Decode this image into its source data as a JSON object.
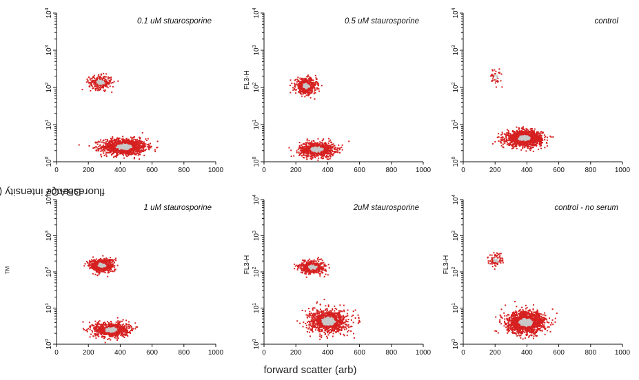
{
  "figure": {
    "ylabel_main": "DRAQ7",
    "ylabel_sup": "TM",
    "ylabel_rest": " fluorescence intensity (>695 nm LP)",
    "xlabel": "forward scatter (arb)"
  },
  "colors": {
    "dot": "#d62020",
    "core": "#c8c8c8",
    "axis": "#111111"
  },
  "chart_data": [
    {
      "type": "scatter",
      "title": "0.1 uM stuarosporine",
      "x_ticks": [
        "0",
        "200",
        "400",
        "600",
        "800",
        "1000"
      ],
      "y_ticks": [
        "10^0",
        "10^1",
        "10^2",
        "10^3",
        "10^4"
      ],
      "xlim": [
        0,
        1000
      ],
      "ylim_log10": [
        0,
        4
      ],
      "ylabel_text": "",
      "populations": [
        {
          "name": "live",
          "x_center": 420,
          "y_center_log": 0.42,
          "x_spread": 140,
          "y_spread_log": 0.22,
          "weight": 0.8
        },
        {
          "name": "dead",
          "x_center": 270,
          "y_center_log": 2.15,
          "x_spread": 70,
          "y_spread_log": 0.18,
          "weight": 0.2
        }
      ]
    },
    {
      "type": "scatter",
      "title": "0.5 uM staurosporine",
      "x_ticks": [
        "0",
        "200",
        "400",
        "600",
        "800",
        "1000"
      ],
      "y_ticks": [
        "10^0",
        "10^1",
        "10^2",
        "10^3",
        "10^4"
      ],
      "xlim": [
        0,
        1000
      ],
      "ylim_log10": [
        0,
        4
      ],
      "ylabel_text": "FL3-H",
      "populations": [
        {
          "name": "live",
          "x_center": 330,
          "y_center_log": 0.35,
          "x_spread": 110,
          "y_spread_log": 0.2,
          "weight": 0.6
        },
        {
          "name": "dead",
          "x_center": 260,
          "y_center_log": 2.05,
          "x_spread": 65,
          "y_spread_log": 0.2,
          "weight": 0.4
        }
      ]
    },
    {
      "type": "scatter",
      "title": "control",
      "x_ticks": [
        "0",
        "200",
        "400",
        "600",
        "800",
        "1000"
      ],
      "y_ticks": [
        "10^0",
        "10^1",
        "10^2",
        "10^3",
        "10^4"
      ],
      "xlim": [
        0,
        1000
      ],
      "ylim_log10": [
        0,
        4
      ],
      "ylabel_text": "",
      "populations": [
        {
          "name": "live",
          "x_center": 380,
          "y_center_log": 0.65,
          "x_spread": 110,
          "y_spread_log": 0.2,
          "weight": 0.97
        },
        {
          "name": "dead",
          "x_center": 200,
          "y_center_log": 2.3,
          "x_spread": 40,
          "y_spread_log": 0.2,
          "weight": 0.03
        }
      ]
    },
    {
      "type": "scatter",
      "title": "1 uM staurosporine",
      "x_ticks": [
        "0",
        "200",
        "400",
        "600",
        "800",
        "1000"
      ],
      "y_ticks": [
        "10^0",
        "10^1",
        "10^2",
        "10^3",
        "10^4"
      ],
      "xlim": [
        0,
        1000
      ],
      "ylim_log10": [
        0,
        4
      ],
      "ylabel_text": "",
      "populations": [
        {
          "name": "live",
          "x_center": 340,
          "y_center_log": 0.42,
          "x_spread": 110,
          "y_spread_log": 0.2,
          "weight": 0.55
        },
        {
          "name": "dead",
          "x_center": 280,
          "y_center_log": 2.2,
          "x_spread": 75,
          "y_spread_log": 0.18,
          "weight": 0.45
        }
      ]
    },
    {
      "type": "scatter",
      "title": "2uM staurosporine",
      "x_ticks": [
        "0",
        "200",
        "400",
        "600",
        "800",
        "1000"
      ],
      "y_ticks": [
        "10^0",
        "10^1",
        "10^2",
        "10^3",
        "10^4"
      ],
      "xlim": [
        0,
        1000
      ],
      "ylim_log10": [
        0,
        4
      ],
      "ylabel_text": "FL3-H",
      "populations": [
        {
          "name": "live",
          "x_center": 400,
          "y_center_log": 0.65,
          "x_spread": 120,
          "y_spread_log": 0.32,
          "weight": 0.65
        },
        {
          "name": "dead",
          "x_center": 300,
          "y_center_log": 2.15,
          "x_spread": 80,
          "y_spread_log": 0.17,
          "weight": 0.35
        }
      ]
    },
    {
      "type": "scatter",
      "title": "control - no serum",
      "x_ticks": [
        "0",
        "200",
        "400",
        "600",
        "800",
        "1000"
      ],
      "y_ticks": [
        "10^0",
        "10^1",
        "10^2",
        "10^3",
        "10^4"
      ],
      "xlim": [
        0,
        1000
      ],
      "ylim_log10": [
        0,
        4
      ],
      "ylabel_text": "FL3-H",
      "populations": [
        {
          "name": "live",
          "x_center": 390,
          "y_center_log": 0.62,
          "x_spread": 120,
          "y_spread_log": 0.3,
          "weight": 0.93
        },
        {
          "name": "dead",
          "x_center": 200,
          "y_center_log": 2.35,
          "x_spread": 45,
          "y_spread_log": 0.18,
          "weight": 0.07
        }
      ]
    }
  ]
}
